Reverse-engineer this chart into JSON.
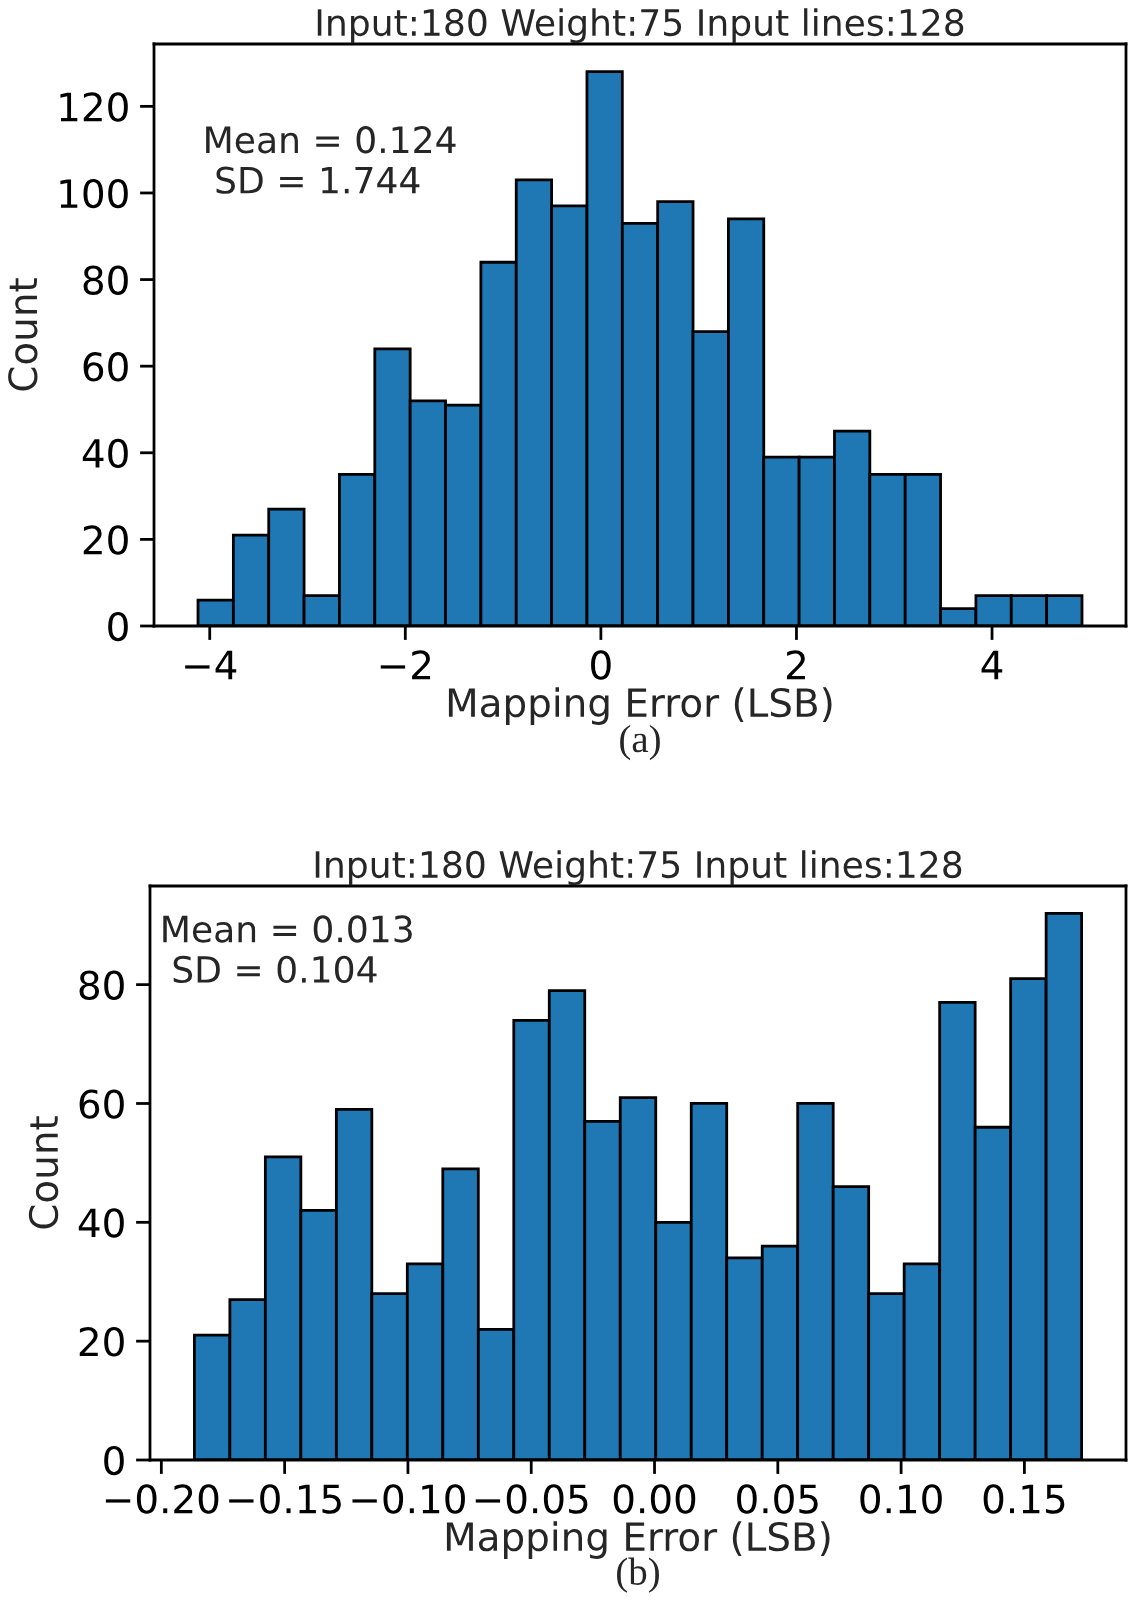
{
  "chart_data": [
    {
      "type": "histogram",
      "title": "Input:180 Weight:75 Input lines:128",
      "xlabel": "Mapping Error (LSB)",
      "ylabel": "Count",
      "annotations": [
        "Mean = 0.124\n SD = 1.744",
        "(a)"
      ],
      "bins": [
        -4.12,
        -3.7584,
        -3.3968,
        -3.0352,
        -2.6736,
        -2.312,
        -1.9504,
        -1.5888,
        -1.2272,
        -0.8656,
        -0.504,
        -0.1424,
        0.2192,
        0.5808,
        0.9424,
        1.304,
        1.6656,
        2.0272,
        2.3888,
        2.7504,
        3.112,
        3.4736,
        3.8352,
        4.1968,
        4.5584,
        4.92
      ],
      "values": [
        6,
        21,
        27,
        7,
        35,
        64,
        52,
        51,
        84,
        103,
        97,
        128,
        93,
        98,
        68,
        94,
        39,
        39,
        45,
        35,
        35,
        4,
        7,
        7,
        7
      ],
      "color": "#1f77b4",
      "xlim": [
        -4.57,
        5.37
      ],
      "ylim": [
        0,
        134.4
      ],
      "xticks": [
        {
          "value": -4,
          "label": "−4"
        },
        {
          "value": -2,
          "label": "−2"
        },
        0,
        2,
        4
      ],
      "yticks": [
        0,
        20,
        40,
        60,
        80,
        100,
        120
      ],
      "grid": false,
      "legend": false
    },
    {
      "type": "histogram",
      "title": "Input:180 Weight:75 Input lines:128",
      "xlabel": "Mapping Error (LSB)",
      "ylabel": "Count",
      "annotations": [
        "Mean = 0.013\n SD = 0.104",
        "(b)"
      ],
      "bins": [
        -0.1866,
        -0.17221,
        -0.15782,
        -0.14342,
        -0.12903,
        -0.11464,
        -0.10025,
        -0.08586,
        -0.07146,
        -0.05707,
        -0.04268,
        -0.02829,
        -0.0139,
        0.0005,
        0.01489,
        0.02928,
        0.04367,
        0.05806,
        0.07246,
        0.08685,
        0.10124,
        0.11563,
        0.13002,
        0.14442,
        0.15881,
        0.1732
      ],
      "values": [
        21,
        27,
        51,
        42,
        59,
        28,
        33,
        49,
        22,
        74,
        79,
        57,
        61,
        40,
        60,
        34,
        36,
        60,
        46,
        28,
        33,
        77,
        56,
        81,
        92
      ],
      "color": "#1f77b4",
      "xlim": [
        -0.2046,
        0.1912
      ],
      "ylim": [
        0,
        96.6
      ],
      "xticks": [
        {
          "value": -0.2,
          "label": "−0.20"
        },
        {
          "value": -0.15,
          "label": "−0.15"
        },
        {
          "value": -0.1,
          "label": "−0.10"
        },
        {
          "value": -0.05,
          "label": "−0.05"
        },
        {
          "value": 0,
          "label": "0.00"
        },
        {
          "value": 0.05,
          "label": "0.05"
        },
        {
          "value": 0.1,
          "label": "0.10"
        },
        {
          "value": 0.15,
          "label": "0.15"
        }
      ],
      "yticks": [
        0,
        20,
        40,
        60,
        80
      ],
      "grid": false,
      "legend": false
    }
  ]
}
